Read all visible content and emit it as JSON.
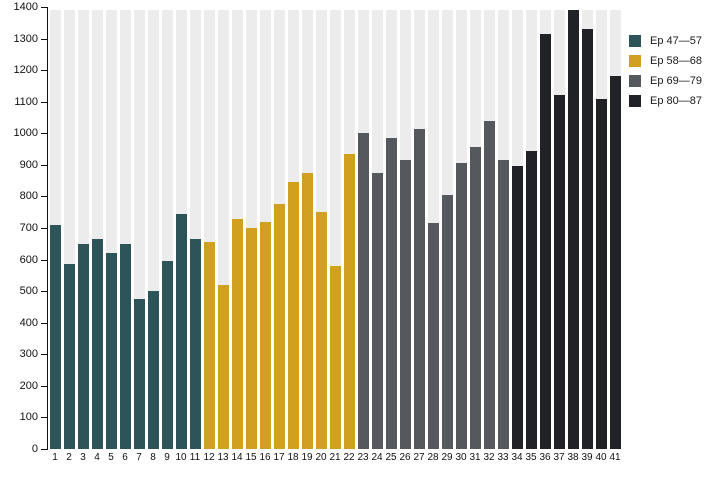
{
  "chart_data": {
    "type": "bar",
    "title": "",
    "xlabel": "",
    "ylabel": "",
    "ylim": [
      0,
      1400
    ],
    "ytick_step": 100,
    "grid": false,
    "legend_position": "top-right",
    "backdrop_column_color": "#ececec",
    "axis_color": "#111111",
    "categories": [
      1,
      2,
      3,
      4,
      5,
      6,
      7,
      8,
      9,
      10,
      11,
      12,
      13,
      14,
      15,
      16,
      17,
      18,
      19,
      20,
      21,
      22,
      23,
      24,
      25,
      26,
      27,
      28,
      29,
      30,
      31,
      32,
      33,
      34,
      35,
      36,
      37,
      38,
      39,
      40,
      41
    ],
    "values": [
      710,
      585,
      650,
      665,
      620,
      650,
      475,
      500,
      595,
      745,
      665,
      655,
      520,
      730,
      700,
      720,
      775,
      845,
      875,
      750,
      580,
      935,
      1000,
      875,
      985,
      915,
      1015,
      715,
      805,
      905,
      955,
      1040,
      915,
      895,
      945,
      1315,
      1120,
      1390,
      1330,
      1110,
      1180
    ],
    "groups": [
      {
        "label": "Ep 47—57",
        "color": "#2d5458",
        "from": 1,
        "to": 11
      },
      {
        "label": "Ep 58—68",
        "color": "#d1a01e",
        "from": 12,
        "to": 22
      },
      {
        "label": "Ep 69—79",
        "color": "#55585c",
        "from": 23,
        "to": 33
      },
      {
        "label": "Ep 80—87",
        "color": "#212226",
        "from": 34,
        "to": 41
      }
    ]
  }
}
